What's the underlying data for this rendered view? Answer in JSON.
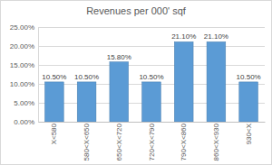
{
  "chart_data": {
    "type": "bar",
    "title": "Revenues per 000' sqf",
    "categories": [
      "X<580",
      "580<X<650",
      "650<X<720",
      "720<X<790",
      "790<X<860",
      "860<X<930",
      "930<X"
    ],
    "values": [
      10.5,
      10.5,
      15.8,
      10.5,
      21.1,
      21.1,
      10.5
    ],
    "value_labels": [
      "10.50%",
      "10.50%",
      "15.80%",
      "10.50%",
      "21.10%",
      "21.10%",
      "10.50%"
    ],
    "color": "#5b9bd5",
    "ylim": [
      0,
      25
    ],
    "yticks": [
      {
        "value": 0,
        "label": "0.00%"
      },
      {
        "value": 5,
        "label": "5.00%"
      },
      {
        "value": 10,
        "label": "10.00%"
      },
      {
        "value": 15,
        "label": "15.00%"
      },
      {
        "value": 20,
        "label": "20.00%"
      },
      {
        "value": 25,
        "label": "25.00%"
      }
    ],
    "grid": true,
    "data_labels": true
  }
}
